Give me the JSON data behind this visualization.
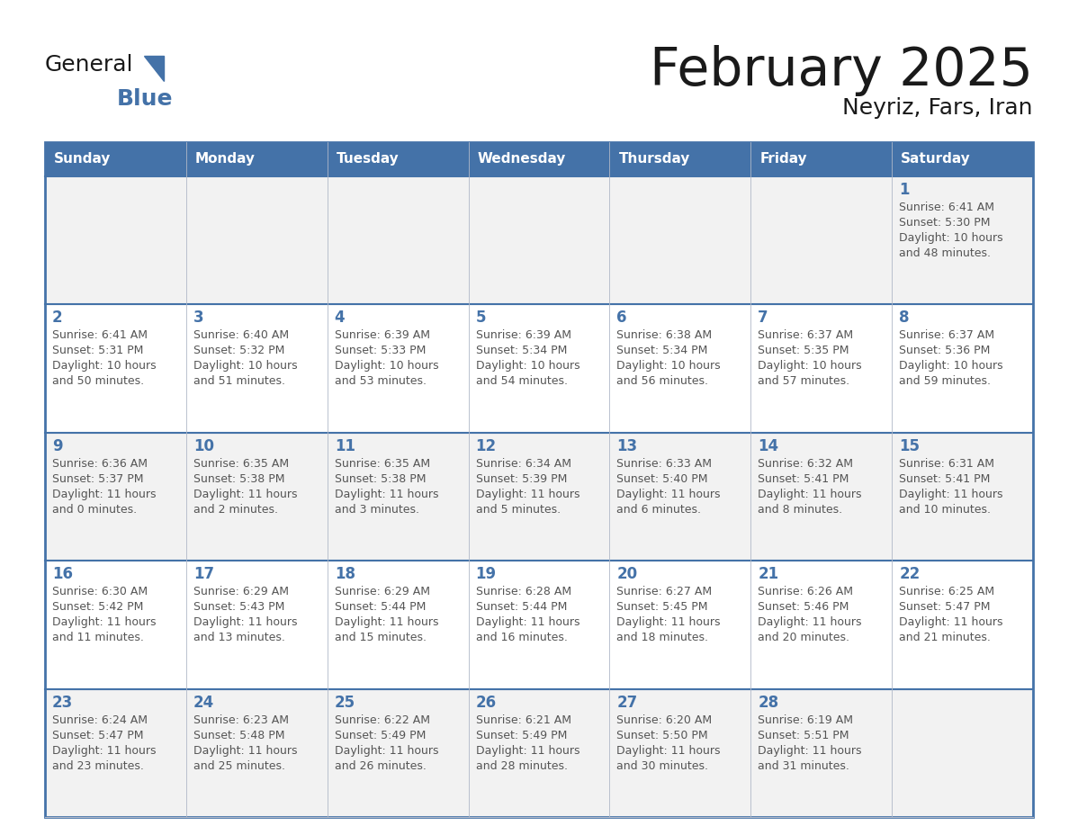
{
  "title": "February 2025",
  "subtitle": "Neyriz, Fars, Iran",
  "days_of_week": [
    "Sunday",
    "Monday",
    "Tuesday",
    "Wednesday",
    "Thursday",
    "Friday",
    "Saturday"
  ],
  "header_bg": "#4472a8",
  "header_text": "#ffffff",
  "row_odd_bg": "#f2f2f2",
  "row_even_bg": "#ffffff",
  "border_color": "#4472a8",
  "inner_border_color": "#b0b8c8",
  "day_num_color": "#4472a8",
  "text_color": "#555555",
  "title_color": "#1a1a1a",
  "logo_general_color": "#1a1a1a",
  "logo_blue_color": "#4472a8",
  "logo_triangle_color": "#4472a8",
  "calendar_data": [
    [
      {
        "day": "",
        "sunrise": "",
        "sunset": "",
        "daylight": ""
      },
      {
        "day": "",
        "sunrise": "",
        "sunset": "",
        "daylight": ""
      },
      {
        "day": "",
        "sunrise": "",
        "sunset": "",
        "daylight": ""
      },
      {
        "day": "",
        "sunrise": "",
        "sunset": "",
        "daylight": ""
      },
      {
        "day": "",
        "sunrise": "",
        "sunset": "",
        "daylight": ""
      },
      {
        "day": "",
        "sunrise": "",
        "sunset": "",
        "daylight": ""
      },
      {
        "day": "1",
        "sunrise": "6:41 AM",
        "sunset": "5:30 PM",
        "daylight": "10 hours\nand 48 minutes."
      }
    ],
    [
      {
        "day": "2",
        "sunrise": "6:41 AM",
        "sunset": "5:31 PM",
        "daylight": "10 hours\nand 50 minutes."
      },
      {
        "day": "3",
        "sunrise": "6:40 AM",
        "sunset": "5:32 PM",
        "daylight": "10 hours\nand 51 minutes."
      },
      {
        "day": "4",
        "sunrise": "6:39 AM",
        "sunset": "5:33 PM",
        "daylight": "10 hours\nand 53 minutes."
      },
      {
        "day": "5",
        "sunrise": "6:39 AM",
        "sunset": "5:34 PM",
        "daylight": "10 hours\nand 54 minutes."
      },
      {
        "day": "6",
        "sunrise": "6:38 AM",
        "sunset": "5:34 PM",
        "daylight": "10 hours\nand 56 minutes."
      },
      {
        "day": "7",
        "sunrise": "6:37 AM",
        "sunset": "5:35 PM",
        "daylight": "10 hours\nand 57 minutes."
      },
      {
        "day": "8",
        "sunrise": "6:37 AM",
        "sunset": "5:36 PM",
        "daylight": "10 hours\nand 59 minutes."
      }
    ],
    [
      {
        "day": "9",
        "sunrise": "6:36 AM",
        "sunset": "5:37 PM",
        "daylight": "11 hours\nand 0 minutes."
      },
      {
        "day": "10",
        "sunrise": "6:35 AM",
        "sunset": "5:38 PM",
        "daylight": "11 hours\nand 2 minutes."
      },
      {
        "day": "11",
        "sunrise": "6:35 AM",
        "sunset": "5:38 PM",
        "daylight": "11 hours\nand 3 minutes."
      },
      {
        "day": "12",
        "sunrise": "6:34 AM",
        "sunset": "5:39 PM",
        "daylight": "11 hours\nand 5 minutes."
      },
      {
        "day": "13",
        "sunrise": "6:33 AM",
        "sunset": "5:40 PM",
        "daylight": "11 hours\nand 6 minutes."
      },
      {
        "day": "14",
        "sunrise": "6:32 AM",
        "sunset": "5:41 PM",
        "daylight": "11 hours\nand 8 minutes."
      },
      {
        "day": "15",
        "sunrise": "6:31 AM",
        "sunset": "5:41 PM",
        "daylight": "11 hours\nand 10 minutes."
      }
    ],
    [
      {
        "day": "16",
        "sunrise": "6:30 AM",
        "sunset": "5:42 PM",
        "daylight": "11 hours\nand 11 minutes."
      },
      {
        "day": "17",
        "sunrise": "6:29 AM",
        "sunset": "5:43 PM",
        "daylight": "11 hours\nand 13 minutes."
      },
      {
        "day": "18",
        "sunrise": "6:29 AM",
        "sunset": "5:44 PM",
        "daylight": "11 hours\nand 15 minutes."
      },
      {
        "day": "19",
        "sunrise": "6:28 AM",
        "sunset": "5:44 PM",
        "daylight": "11 hours\nand 16 minutes."
      },
      {
        "day": "20",
        "sunrise": "6:27 AM",
        "sunset": "5:45 PM",
        "daylight": "11 hours\nand 18 minutes."
      },
      {
        "day": "21",
        "sunrise": "6:26 AM",
        "sunset": "5:46 PM",
        "daylight": "11 hours\nand 20 minutes."
      },
      {
        "day": "22",
        "sunrise": "6:25 AM",
        "sunset": "5:47 PM",
        "daylight": "11 hours\nand 21 minutes."
      }
    ],
    [
      {
        "day": "23",
        "sunrise": "6:24 AM",
        "sunset": "5:47 PM",
        "daylight": "11 hours\nand 23 minutes."
      },
      {
        "day": "24",
        "sunrise": "6:23 AM",
        "sunset": "5:48 PM",
        "daylight": "11 hours\nand 25 minutes."
      },
      {
        "day": "25",
        "sunrise": "6:22 AM",
        "sunset": "5:49 PM",
        "daylight": "11 hours\nand 26 minutes."
      },
      {
        "day": "26",
        "sunrise": "6:21 AM",
        "sunset": "5:49 PM",
        "daylight": "11 hours\nand 28 minutes."
      },
      {
        "day": "27",
        "sunrise": "6:20 AM",
        "sunset": "5:50 PM",
        "daylight": "11 hours\nand 30 minutes."
      },
      {
        "day": "28",
        "sunrise": "6:19 AM",
        "sunset": "5:51 PM",
        "daylight": "11 hours\nand 31 minutes."
      },
      {
        "day": "",
        "sunrise": "",
        "sunset": "",
        "daylight": ""
      }
    ]
  ]
}
